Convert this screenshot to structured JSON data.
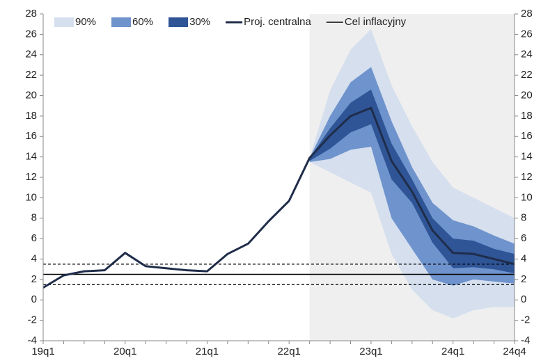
{
  "chart_data": {
    "type": "fan",
    "categories": [
      "19q1",
      null,
      null,
      null,
      "20q1",
      null,
      null,
      null,
      "21q1",
      null,
      null,
      null,
      "22q1",
      null,
      null,
      null,
      "23q1",
      null,
      null,
      null,
      "24q1",
      null,
      null,
      "24q4"
    ],
    "series": [
      {
        "name": "Proj. centralna",
        "color": "#1f2d4a",
        "values": [
          1.2,
          2.4,
          2.8,
          2.9,
          4.6,
          3.3,
          3.1,
          2.9,
          2.8,
          4.5,
          5.5,
          7.7,
          9.7,
          13.9,
          16.1,
          18.0,
          18.8,
          13.6,
          10.6,
          6.8,
          4.6,
          4.5,
          4.0,
          3.5
        ]
      }
    ],
    "bands": [
      {
        "name": "90%",
        "color": "#d5dfee",
        "upper": [
          null,
          null,
          null,
          null,
          null,
          null,
          null,
          null,
          null,
          null,
          null,
          null,
          null,
          13.9,
          20.5,
          24.5,
          26.5,
          21.0,
          17.0,
          13.5,
          11.0,
          10.0,
          9.0,
          8.0
        ],
        "lower": [
          null,
          null,
          null,
          null,
          null,
          null,
          null,
          null,
          null,
          null,
          null,
          null,
          null,
          13.5,
          12.5,
          11.5,
          10.5,
          4.5,
          1.0,
          -1.0,
          -1.8,
          -1.0,
          -0.7,
          -0.7
        ]
      },
      {
        "name": "60%",
        "color": "#6f93cc",
        "upper": [
          null,
          null,
          null,
          null,
          null,
          null,
          null,
          null,
          null,
          null,
          null,
          null,
          null,
          13.9,
          18.0,
          21.3,
          22.8,
          17.5,
          13.0,
          9.5,
          7.8,
          7.2,
          6.3,
          5.5
        ],
        "lower": [
          null,
          null,
          null,
          null,
          null,
          null,
          null,
          null,
          null,
          null,
          null,
          null,
          null,
          13.5,
          13.8,
          14.7,
          15.0,
          8.0,
          5.0,
          2.0,
          1.4,
          2.0,
          1.8,
          1.6
        ]
      },
      {
        "name": "30%",
        "color": "#2f5597",
        "upper": [
          null,
          null,
          null,
          null,
          null,
          null,
          null,
          null,
          null,
          null,
          null,
          null,
          null,
          13.9,
          16.8,
          19.3,
          20.6,
          15.3,
          11.8,
          8.0,
          6.0,
          5.8,
          5.0,
          4.5
        ],
        "lower": [
          null,
          null,
          null,
          null,
          null,
          null,
          null,
          null,
          null,
          null,
          null,
          null,
          null,
          13.6,
          14.8,
          16.4,
          17.2,
          11.8,
          9.5,
          5.6,
          3.1,
          3.2,
          3.0,
          2.6
        ]
      }
    ],
    "target": {
      "name": "Cel inflacyjny",
      "value": 2.5,
      "range": [
        1.5,
        3.5
      ],
      "color": "#000000"
    },
    "ylim": [
      -4,
      28
    ],
    "yticks": [
      -4,
      -2,
      0,
      2,
      4,
      6,
      8,
      10,
      12,
      14,
      16,
      18,
      20,
      22,
      24,
      26,
      28
    ],
    "projection_shade": "#efefef"
  }
}
